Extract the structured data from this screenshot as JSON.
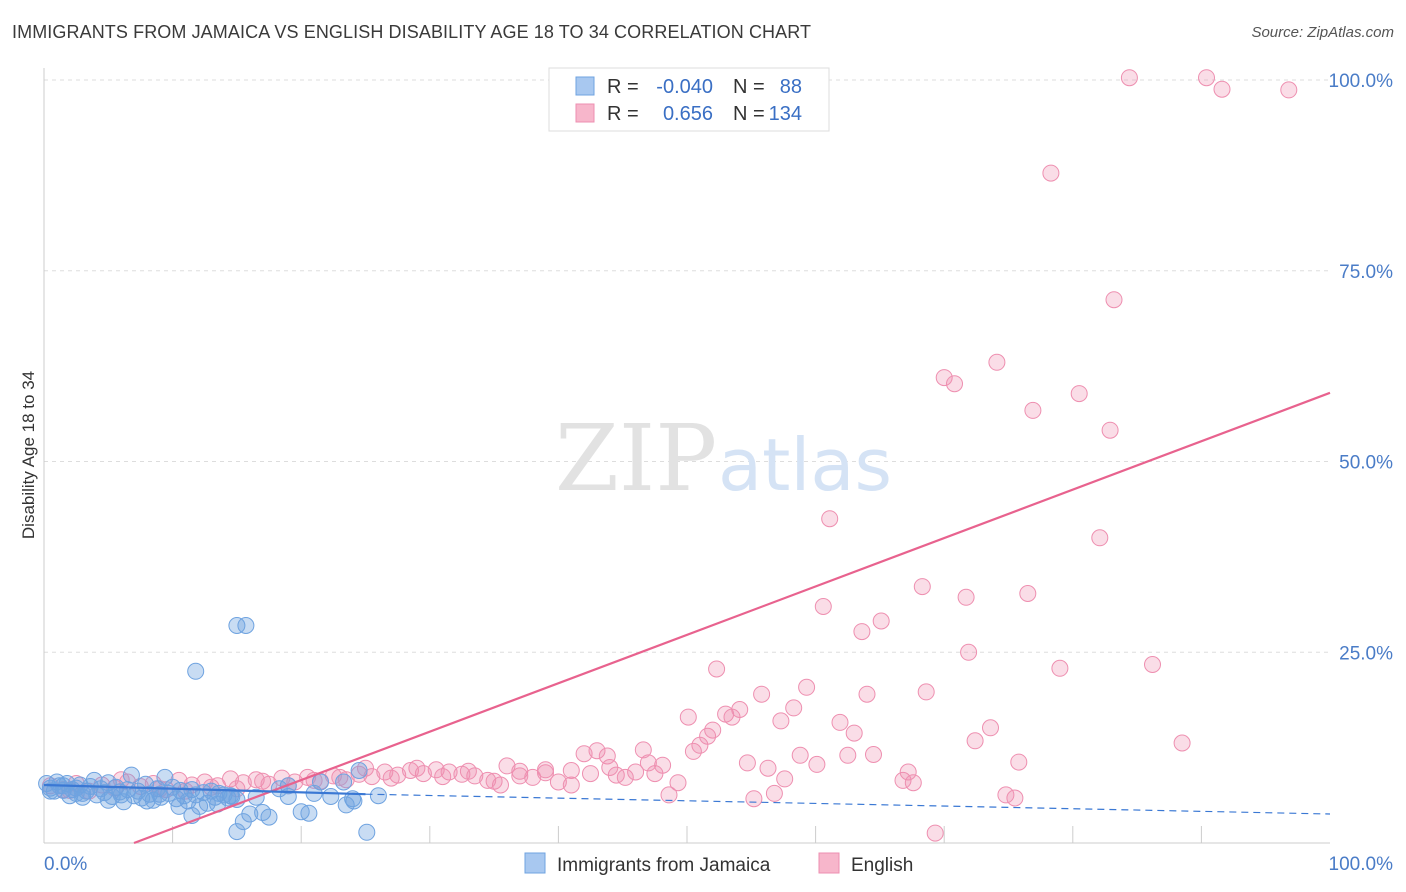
{
  "title": "IMMIGRANTS FROM JAMAICA VS ENGLISH DISABILITY AGE 18 TO 34 CORRELATION CHART",
  "source": "Source: ZipAtlas.com",
  "watermark": {
    "zip": "ZIP",
    "atlas": "atlas"
  },
  "legend": {
    "rows": [
      {
        "r_label": "R =",
        "r_value": "-0.040",
        "n_label": "N =",
        "n_value": "88",
        "color": "#a8c8f0"
      },
      {
        "r_label": "R =",
        "r_value": "0.656",
        "n_label": "N =",
        "n_value": "134",
        "color": "#f7b6cb"
      }
    ]
  },
  "colors": {
    "blue": "#6fa3e0",
    "pink": "#ee8fb0",
    "blue_line": "#3a78d4",
    "pink_line": "#e8628e",
    "tick_text": "#4a7cc7"
  },
  "chart_data": {
    "type": "scatter",
    "title": "IMMIGRANTS FROM JAMAICA VS ENGLISH DISABILITY AGE 18 TO 34 CORRELATION CHART",
    "xlabel": "",
    "ylabel": "Disability Age 18 to 34",
    "xlim": [
      0,
      100
    ],
    "ylim": [
      0,
      100
    ],
    "x_tick_labels": [
      "0.0%",
      "100.0%"
    ],
    "y_tick_labels": [
      "25.0%",
      "50.0%",
      "75.0%",
      "100.0%"
    ],
    "y_ticks": [
      25,
      50,
      75,
      100
    ],
    "grid": true,
    "legend_position": "top-center",
    "series": [
      {
        "name": "Immigrants from Jamaica",
        "color": "#6fa3e0",
        "r": -0.04,
        "n": 88,
        "trend": {
          "x": [
            0,
            25
          ],
          "y": [
            7.6,
            6.4
          ],
          "dashed_to": [
            100,
            3.8
          ]
        },
        "points": [
          [
            0.2,
            7.8
          ],
          [
            0.5,
            7.2
          ],
          [
            0.8,
            6.8
          ],
          [
            1.0,
            8.0
          ],
          [
            1.2,
            7.5
          ],
          [
            1.5,
            6.9
          ],
          [
            1.8,
            7.8
          ],
          [
            2.0,
            6.2
          ],
          [
            2.2,
            7.0
          ],
          [
            2.5,
            6.5
          ],
          [
            2.8,
            7.6
          ],
          [
            3.0,
            6.0
          ],
          [
            3.3,
            6.8
          ],
          [
            3.6,
            7.4
          ],
          [
            3.9,
            8.2
          ],
          [
            4.1,
            6.3
          ],
          [
            4.4,
            7.1
          ],
          [
            4.7,
            6.6
          ],
          [
            5.0,
            7.9
          ],
          [
            5.3,
            6.1
          ],
          [
            5.6,
            7.3
          ],
          [
            5.9,
            6.7
          ],
          [
            6.2,
            5.4
          ],
          [
            6.5,
            7.0
          ],
          [
            6.8,
            8.9
          ],
          [
            7.0,
            6.2
          ],
          [
            7.3,
            6.8
          ],
          [
            7.6,
            5.9
          ],
          [
            7.9,
            7.7
          ],
          [
            8.2,
            6.4
          ],
          [
            8.5,
            5.6
          ],
          [
            8.8,
            7.1
          ],
          [
            9.1,
            6.0
          ],
          [
            9.4,
            8.6
          ],
          [
            9.7,
            6.5
          ],
          [
            10.0,
            7.3
          ],
          [
            10.3,
            5.8
          ],
          [
            10.6,
            6.9
          ],
          [
            10.9,
            6.2
          ],
          [
            11.2,
            5.5
          ],
          [
            11.5,
            7.0
          ],
          [
            11.8,
            6.3
          ],
          [
            12.1,
            4.8
          ],
          [
            12.4,
            6.6
          ],
          [
            12.7,
            5.2
          ],
          [
            13.0,
            6.8
          ],
          [
            13.3,
            6.0
          ],
          [
            13.6,
            6.5
          ],
          [
            14.0,
            6.3
          ],
          [
            14.3,
            5.9
          ],
          [
            14.6,
            6.1
          ],
          [
            15.0,
            5.7
          ],
          [
            9.0,
            6.4
          ],
          [
            5.0,
            5.6
          ],
          [
            3.0,
            6.5
          ],
          [
            1.5,
            7.5
          ],
          [
            0.5,
            6.8
          ],
          [
            2.5,
            7.2
          ],
          [
            6.0,
            6.3
          ],
          [
            8.0,
            5.5
          ],
          [
            10.5,
            4.8
          ],
          [
            11.5,
            3.6
          ],
          [
            13.5,
            5.1
          ],
          [
            14.5,
            6.2
          ],
          [
            15.0,
            1.5
          ],
          [
            15.5,
            2.8
          ],
          [
            16.0,
            3.8
          ],
          [
            16.5,
            6.0
          ],
          [
            17.5,
            3.4
          ],
          [
            18.3,
            7.1
          ],
          [
            19.0,
            6.1
          ],
          [
            20.0,
            4.1
          ],
          [
            20.6,
            3.9
          ],
          [
            21.0,
            6.5
          ],
          [
            22.3,
            6.1
          ],
          [
            23.3,
            8.0
          ],
          [
            24.1,
            5.5
          ],
          [
            25.1,
            1.4
          ],
          [
            26.0,
            6.2
          ],
          [
            24.5,
            9.5
          ],
          [
            24.0,
            5.8
          ],
          [
            23.5,
            5.0
          ],
          [
            15.0,
            28.5
          ],
          [
            15.7,
            28.5
          ],
          [
            11.8,
            22.5
          ],
          [
            17.0,
            4.0
          ],
          [
            19.0,
            7.5
          ],
          [
            21.5,
            8.0
          ]
        ]
      },
      {
        "name": "English",
        "color": "#ee8fb0",
        "r": 0.656,
        "n": 134,
        "trend": {
          "x": [
            7,
            100
          ],
          "y": [
            0,
            59
          ]
        },
        "points": [
          [
            0.5,
            7.5
          ],
          [
            1.5,
            7.0
          ],
          [
            2.5,
            7.8
          ],
          [
            3.5,
            6.8
          ],
          [
            4.5,
            7.6
          ],
          [
            5.5,
            7.2
          ],
          [
            6.5,
            8.0
          ],
          [
            7.5,
            7.4
          ],
          [
            8.5,
            7.8
          ],
          [
            9.5,
            7.0
          ],
          [
            10.5,
            8.2
          ],
          [
            11.5,
            7.6
          ],
          [
            12.5,
            8.0
          ],
          [
            13.5,
            7.5
          ],
          [
            14.5,
            8.4
          ],
          [
            15.5,
            7.9
          ],
          [
            16.5,
            8.3
          ],
          [
            17.5,
            7.7
          ],
          [
            18.5,
            8.5
          ],
          [
            19.5,
            8.0
          ],
          [
            20.5,
            8.6
          ],
          [
            21.5,
            8.1
          ],
          [
            22.5,
            8.8
          ],
          [
            23.5,
            8.3
          ],
          [
            24.5,
            9.0
          ],
          [
            25.5,
            8.7
          ],
          [
            26.5,
            9.3
          ],
          [
            27.5,
            8.9
          ],
          [
            28.5,
            9.5
          ],
          [
            29.5,
            9.1
          ],
          [
            30.5,
            9.6
          ],
          [
            31.5,
            9.3
          ],
          [
            32.5,
            9.0
          ],
          [
            33.5,
            8.8
          ],
          [
            34.5,
            8.2
          ],
          [
            35.5,
            7.6
          ],
          [
            36.0,
            10.1
          ],
          [
            37.0,
            9.4
          ],
          [
            38.0,
            8.6
          ],
          [
            39.0,
            9.2
          ],
          [
            40.0,
            8.0
          ],
          [
            41.0,
            7.6
          ],
          [
            42.0,
            11.7
          ],
          [
            42.5,
            9.1
          ],
          [
            43.0,
            12.1
          ],
          [
            43.8,
            11.4
          ],
          [
            44.5,
            8.9
          ],
          [
            45.2,
            8.6
          ],
          [
            46.0,
            9.3
          ],
          [
            46.6,
            12.2
          ],
          [
            47.5,
            9.1
          ],
          [
            48.1,
            10.2
          ],
          [
            48.6,
            6.3
          ],
          [
            49.3,
            7.9
          ],
          [
            50.1,
            16.5
          ],
          [
            50.5,
            12.0
          ],
          [
            51.0,
            12.8
          ],
          [
            51.6,
            14.0
          ],
          [
            52.0,
            14.8
          ],
          [
            52.3,
            22.8
          ],
          [
            53.0,
            16.9
          ],
          [
            53.5,
            16.5
          ],
          [
            54.1,
            17.5
          ],
          [
            54.7,
            10.5
          ],
          [
            55.2,
            5.8
          ],
          [
            55.8,
            19.5
          ],
          [
            56.3,
            9.8
          ],
          [
            56.8,
            6.5
          ],
          [
            57.3,
            16.0
          ],
          [
            57.6,
            8.4
          ],
          [
            58.3,
            17.7
          ],
          [
            58.8,
            11.5
          ],
          [
            59.3,
            20.4
          ],
          [
            60.1,
            10.3
          ],
          [
            60.6,
            31.0
          ],
          [
            61.1,
            42.5
          ],
          [
            61.9,
            15.8
          ],
          [
            62.5,
            11.5
          ],
          [
            63.0,
            14.4
          ],
          [
            63.6,
            27.7
          ],
          [
            64.0,
            19.5
          ],
          [
            64.5,
            11.6
          ],
          [
            65.1,
            29.1
          ],
          [
            66.8,
            8.2
          ],
          [
            67.2,
            9.3
          ],
          [
            67.6,
            7.9
          ],
          [
            68.3,
            33.6
          ],
          [
            68.6,
            19.8
          ],
          [
            69.3,
            1.3
          ],
          [
            70.0,
            61.0
          ],
          [
            70.8,
            60.2
          ],
          [
            71.7,
            32.2
          ],
          [
            71.9,
            25.0
          ],
          [
            72.4,
            13.4
          ],
          [
            73.6,
            15.1
          ],
          [
            74.1,
            63.0
          ],
          [
            74.8,
            6.3
          ],
          [
            75.5,
            5.9
          ],
          [
            75.8,
            10.6
          ],
          [
            76.5,
            32.7
          ],
          [
            76.9,
            56.7
          ],
          [
            78.3,
            87.8
          ],
          [
            79.0,
            22.9
          ],
          [
            80.5,
            58.9
          ],
          [
            82.1,
            40.0
          ],
          [
            82.9,
            54.1
          ],
          [
            83.2,
            71.2
          ],
          [
            84.4,
            100.3
          ],
          [
            86.2,
            23.4
          ],
          [
            88.5,
            13.1
          ],
          [
            90.4,
            100.3
          ],
          [
            91.6,
            98.8
          ],
          [
            96.8,
            98.7
          ],
          [
            6.0,
            8.3
          ],
          [
            9.0,
            7.1
          ],
          [
            11.0,
            6.8
          ],
          [
            13.0,
            7.3
          ],
          [
            15.0,
            7.1
          ],
          [
            17.0,
            8.1
          ],
          [
            19.0,
            7.5
          ],
          [
            21.0,
            8.2
          ],
          [
            23.0,
            8.6
          ],
          [
            25.0,
            9.8
          ],
          [
            27.0,
            8.5
          ],
          [
            29.0,
            9.8
          ],
          [
            31.0,
            8.7
          ],
          [
            33.0,
            9.4
          ],
          [
            35.0,
            8.1
          ],
          [
            37.0,
            8.8
          ],
          [
            39.0,
            9.6
          ],
          [
            41.0,
            9.5
          ],
          [
            44.0,
            9.9
          ],
          [
            47.0,
            10.5
          ],
          [
            2.0,
            6.9
          ]
        ]
      }
    ]
  }
}
